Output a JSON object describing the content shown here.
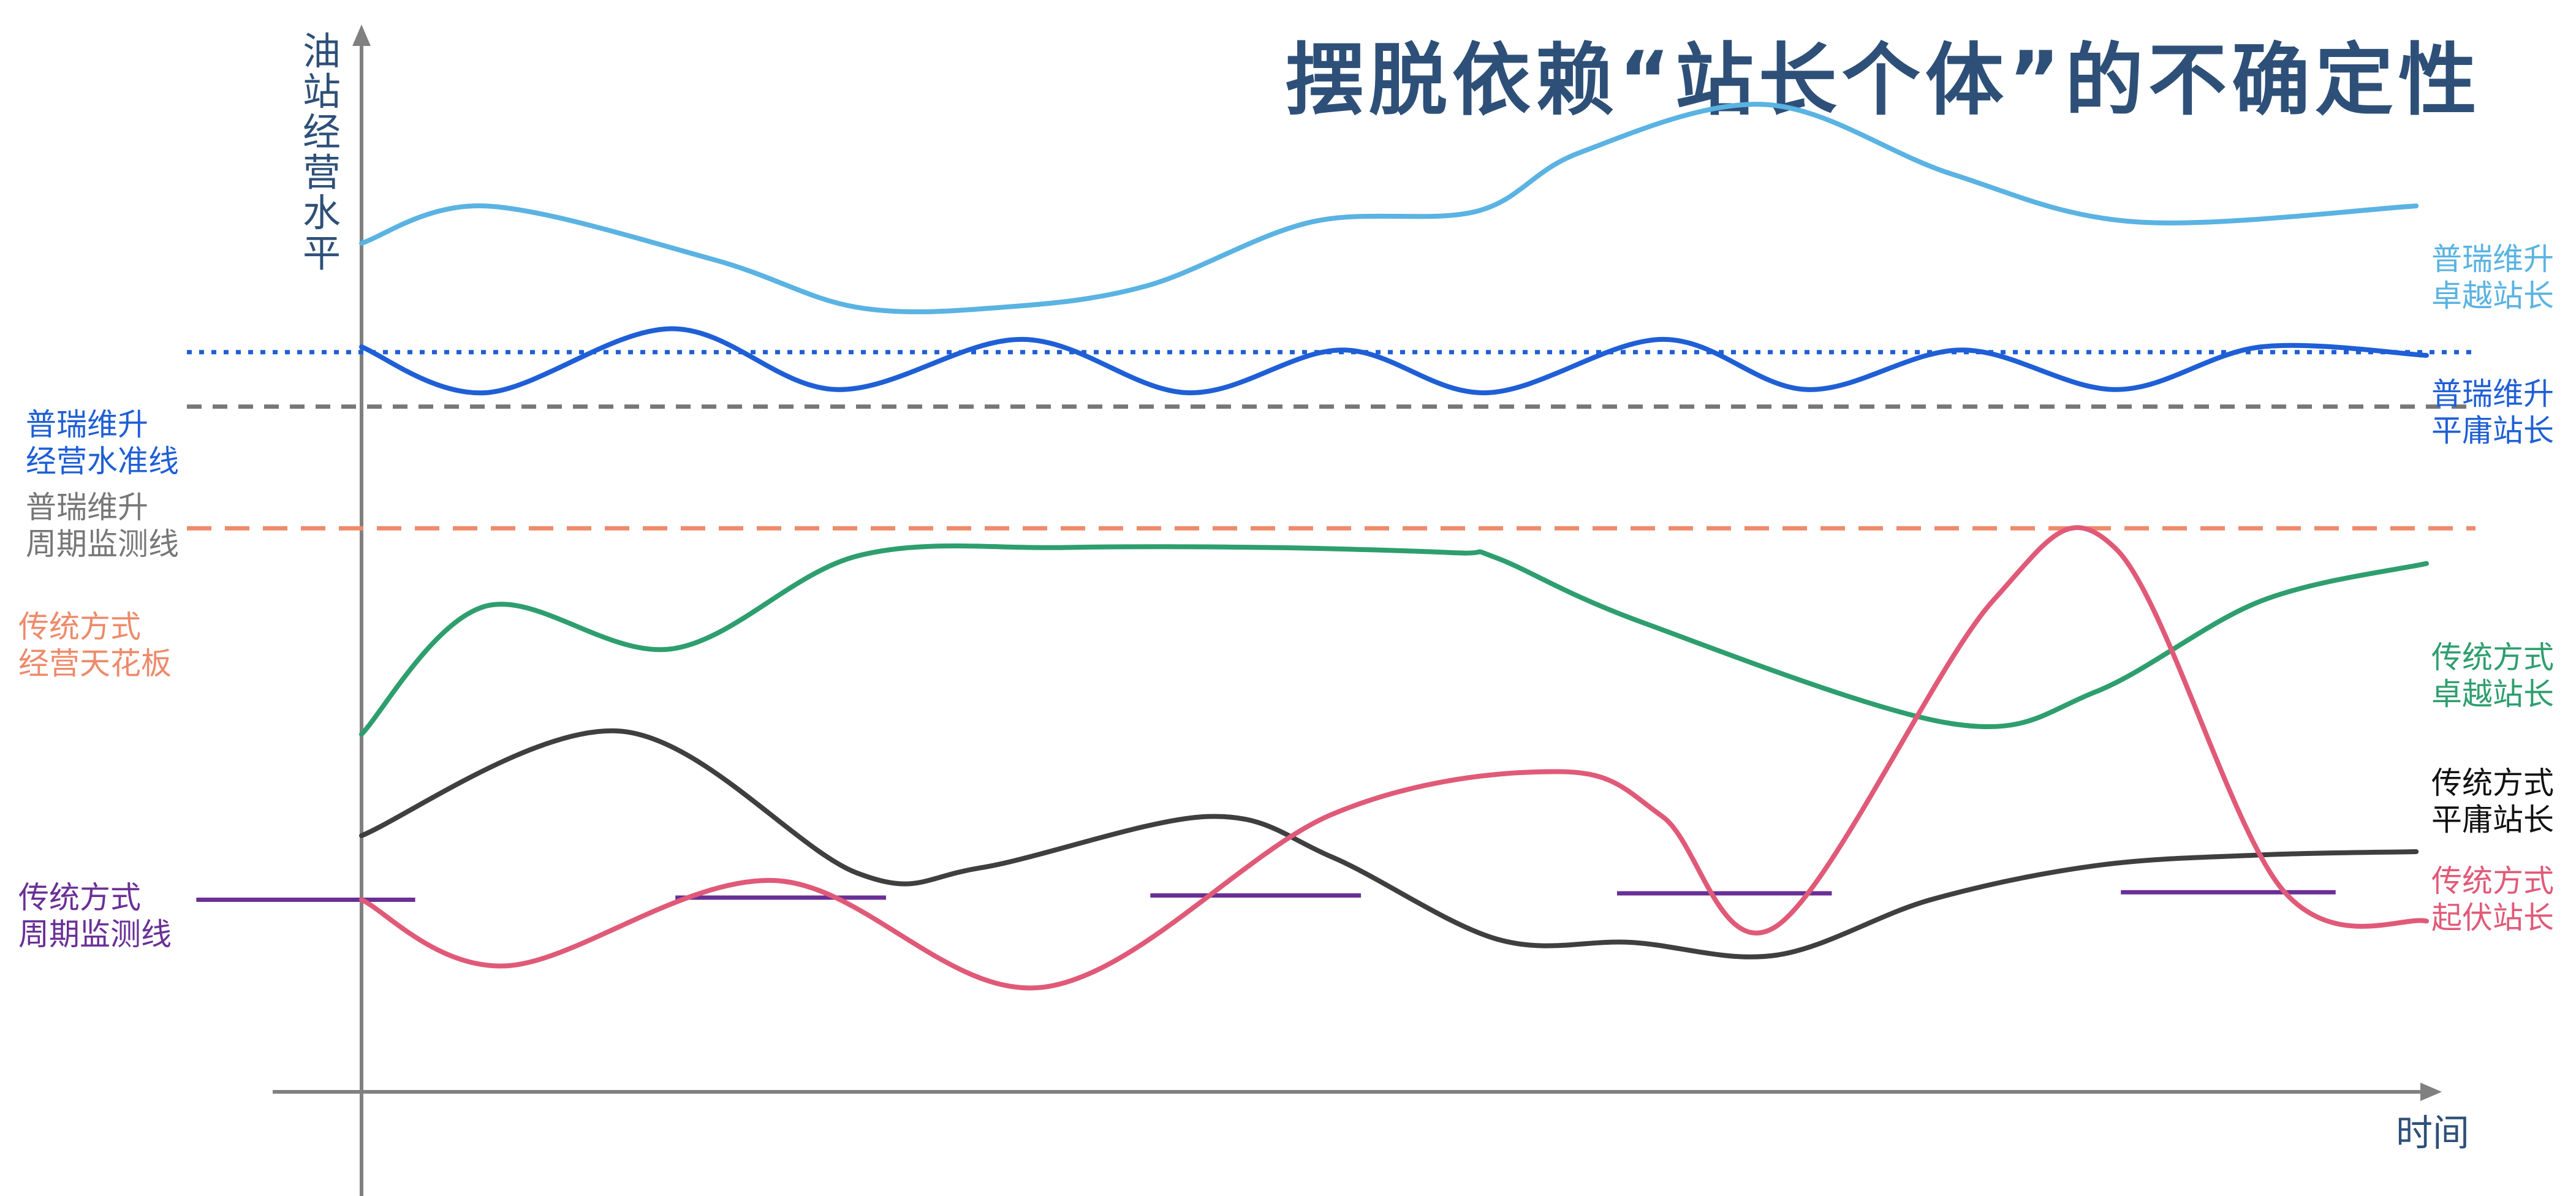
{
  "chart_data": {
    "type": "line",
    "title": "摆脱依赖“站长个体”的不确定性",
    "ylabel": "油站经营水平",
    "xlabel": "时间",
    "xlim": [
      0,
      100
    ],
    "ylim": [
      0,
      100
    ],
    "grid": false,
    "reference_lines": [
      {
        "name": "普瑞维升经营水准线",
        "label_lines": [
          "普瑞维升",
          "经营水准线"
        ],
        "y": 69.3,
        "style": "dotted",
        "color": "#1f5fd6"
      },
      {
        "name": "普瑞维升周期监测线",
        "label_lines": [
          "普瑞维升",
          "周期监测线"
        ],
        "y": 64.2,
        "style": "dashed",
        "color": "#777777"
      },
      {
        "name": "传统方式经营天花板",
        "label_lines": [
          "传统方式",
          "经营天花板"
        ],
        "y": 52.8,
        "style": "dashed",
        "color": "#ee8a6a"
      }
    ],
    "monitor_segments": {
      "name": "传统方式周期监测线",
      "label_lines": [
        "传统方式",
        "周期监测线"
      ],
      "color": "#6a2f96",
      "segments": [
        {
          "x": [
            -8,
            2.6
          ],
          "y": 18.0
        },
        {
          "x": [
            15.2,
            25.4
          ],
          "y": 18.2
        },
        {
          "x": [
            38.2,
            48.4
          ],
          "y": 18.4
        },
        {
          "x": [
            60.8,
            71.2
          ],
          "y": 18.6
        },
        {
          "x": [
            85.2,
            95.6
          ],
          "y": 18.7
        }
      ]
    },
    "series": [
      {
        "name": "普瑞维升卓越站长",
        "label_lines": [
          "普瑞维升",
          "卓越站长"
        ],
        "color": "#5ab3e2",
        "x": [
          0,
          6,
          17,
          24,
          31,
          38,
          46,
          54,
          59,
          68,
          77,
          86,
          99.5
        ],
        "y": [
          79.5,
          83,
          78,
          73.5,
          73.5,
          75.5,
          81.5,
          82.5,
          88,
          92.5,
          86,
          81.5,
          83
        ]
      },
      {
        "name": "普瑞维升平庸站长",
        "label_lines": [
          "普瑞维升",
          "平庸站长"
        ],
        "color": "#1f5fd6",
        "x": [
          0,
          6,
          15,
          23,
          32,
          40,
          47.5,
          54.5,
          63,
          70,
          77.5,
          85,
          92,
          100
        ],
        "y": [
          69.8,
          65.5,
          71.5,
          65.8,
          70.5,
          65.5,
          69.5,
          65.5,
          70.5,
          65.8,
          69.5,
          65.8,
          69.8,
          69.0
        ]
      },
      {
        "name": "传统方式卓越站长",
        "label_lines": [
          "传统方式",
          "卓越站长"
        ],
        "color": "#2e9e6e",
        "x": [
          0,
          6,
          15,
          24,
          34,
          44,
          53,
          55,
          62,
          77,
          84,
          92,
          100
        ],
        "y": [
          33.5,
          45.5,
          41.5,
          50.2,
          51.0,
          51.0,
          50.5,
          50.0,
          44.0,
          34.5,
          37.5,
          46.0,
          49.5
        ]
      },
      {
        "name": "传统方式平庸站长",
        "label_lines": [
          "传统方式",
          "平庸站长"
        ],
        "color": "#3f3f3f",
        "x": [
          0,
          12.5,
          24,
          30,
          41,
          47,
          55,
          61.5,
          68.5,
          76,
          84,
          92,
          99.5
        ],
        "y": [
          24.0,
          33.8,
          20.5,
          21.0,
          25.8,
          22.0,
          14.3,
          14.0,
          12.8,
          18.0,
          21.2,
          22.2,
          22.5
        ]
      },
      {
        "name": "传统方式起伏站长",
        "label_lines": [
          "传统方式",
          "起伏站长"
        ],
        "color": "#e05a78",
        "x": [
          0,
          7,
          20,
          33,
          47,
          58,
          63,
          68.5,
          79,
          85,
          93,
          100
        ],
        "y": [
          18.0,
          11.8,
          19.8,
          9.8,
          26.0,
          30.0,
          25.8,
          15.5,
          46.0,
          50.8,
          19.0,
          16.0
        ]
      }
    ]
  }
}
